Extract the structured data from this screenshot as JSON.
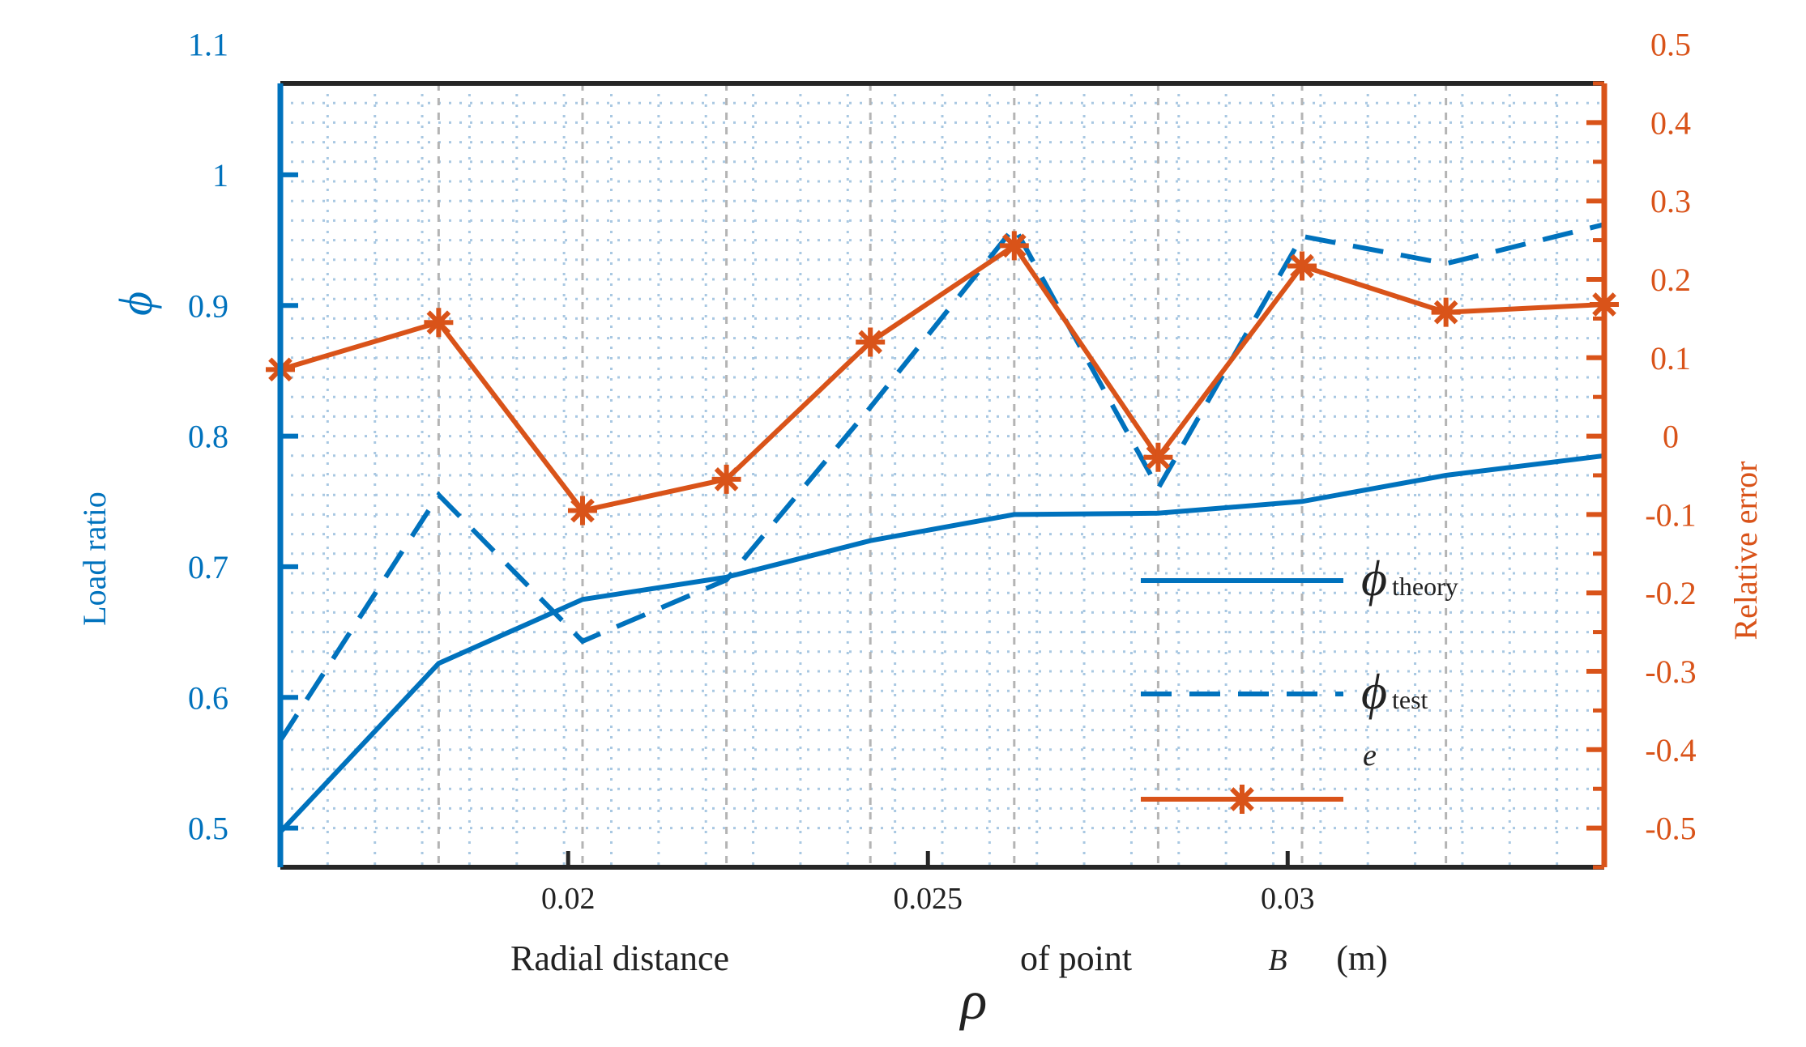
{
  "chart_data": {
    "type": "line",
    "xlabel_parts": {
      "text1": "Radial distance",
      "symbol": "ρ",
      "text2": "of point",
      "point": "B",
      "unit": "(m)"
    },
    "ylabel_left": "Load ratio",
    "ylabel_left_symbol": "ϕ",
    "ylabel_right": "Relative error",
    "xlim": [
      0.016,
      0.0344
    ],
    "ylim_left": [
      0.47,
      1.07
    ],
    "ylim_right": [
      -0.55,
      0.45
    ],
    "x_ticks": [
      0.02,
      0.025,
      0.03
    ],
    "x_tick_labels": [
      "0.02",
      "0.025",
      "0.03"
    ],
    "y_left_ticks": [
      0.5,
      0.6,
      0.7,
      0.8,
      0.9,
      1.0,
      1.1
    ],
    "y_left_tick_labels": [
      "0.5",
      "0.6",
      "0.7",
      "0.8",
      "0.9",
      "1",
      "1.1"
    ],
    "y_right_ticks": [
      -0.5,
      -0.4,
      -0.3,
      -0.2,
      -0.1,
      0,
      0.1,
      0.2,
      0.3,
      0.4,
      0.5
    ],
    "y_right_tick_labels": [
      "-0.5",
      "-0.4",
      "-0.3",
      "-0.2",
      "-0.1",
      "0",
      "0.1",
      "0.2",
      "0.3",
      "0.4",
      "0.5"
    ],
    "grid": true,
    "legend_position": "right-center",
    "series": [
      {
        "name": "ϕ theory",
        "legend_symbol": "ϕ",
        "legend_sub": "theory",
        "axis": "left",
        "style": "solid",
        "color": "#0072bd",
        "x": [
          0.016,
          0.0182,
          0.0202,
          0.0222,
          0.0242,
          0.0262,
          0.0282,
          0.0302,
          0.0322,
          0.0344
        ],
        "y": [
          0.497,
          0.626,
          0.675,
          0.692,
          0.72,
          0.74,
          0.741,
          0.75,
          0.77,
          0.785
        ]
      },
      {
        "name": "ϕ test",
        "legend_symbol": "ϕ",
        "legend_sub": "test",
        "axis": "left",
        "style": "dashed",
        "color": "#0072bd",
        "x": [
          0.016,
          0.0182,
          0.0202,
          0.0222,
          0.0242,
          0.0262,
          0.0282,
          0.0302,
          0.0322,
          0.0344
        ],
        "y": [
          0.567,
          0.755,
          0.643,
          0.69,
          0.822,
          0.96,
          0.76,
          0.953,
          0.932,
          0.962
        ]
      },
      {
        "name": "e",
        "legend_symbol": "e",
        "legend_sub": "",
        "axis": "right",
        "style": "solid-star",
        "color": "#d95319",
        "x": [
          0.016,
          0.0182,
          0.0202,
          0.0222,
          0.0242,
          0.0262,
          0.0282,
          0.0302,
          0.0322,
          0.0344
        ],
        "y": [
          0.085,
          0.145,
          -0.095,
          -0.055,
          0.12,
          0.243,
          -0.027,
          0.217,
          0.158,
          0.168
        ]
      }
    ]
  },
  "colors": {
    "left_axis": "#0072bd",
    "right_axis": "#d95319",
    "frame": "#262626"
  }
}
